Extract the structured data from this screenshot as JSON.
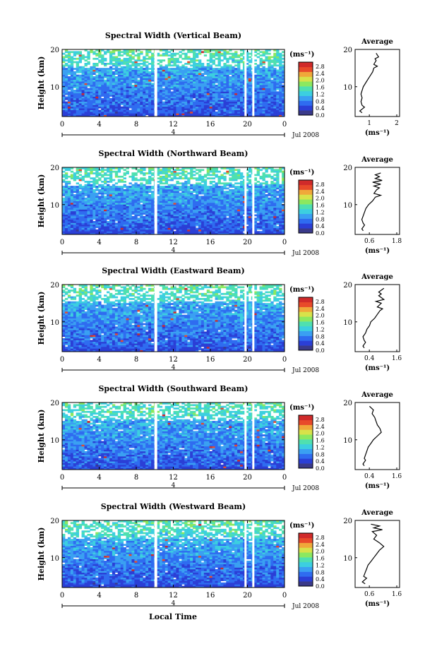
{
  "chart_data": [
    {
      "type": "heatmap",
      "title": "Spectral Width (Vertical Beam)",
      "ylabel": "Height (km)",
      "ylim": [
        2,
        20
      ],
      "yticks": [
        10,
        20
      ],
      "xticks": [
        "0",
        "4",
        "8",
        "12",
        "16",
        "20",
        "0"
      ],
      "date_marker": "4",
      "date_label": "Jul 2008",
      "colorbar": {
        "unit": "(ms⁻¹)",
        "ticks": [
          "2.8",
          "2.4",
          "2.0",
          "1.6",
          "1.2",
          "0.8",
          "0.4",
          "0.0"
        ]
      },
      "average": {
        "title": "Average",
        "xlabel": "(ms⁻¹)",
        "xticks": [
          "1",
          "2"
        ],
        "xlim": [
          0.3,
          2.2
        ],
        "yticks": [
          10,
          20
        ],
        "values": [
          [
            0.6,
            3
          ],
          [
            0.5,
            3.5
          ],
          [
            0.7,
            4.5
          ],
          [
            0.6,
            5
          ],
          [
            0.55,
            6
          ],
          [
            0.6,
            7
          ],
          [
            0.55,
            8
          ],
          [
            0.6,
            9
          ],
          [
            0.65,
            10
          ],
          [
            0.75,
            11
          ],
          [
            0.85,
            12
          ],
          [
            0.95,
            13
          ],
          [
            1.05,
            14
          ],
          [
            1.1,
            15
          ],
          [
            1.25,
            15.5
          ],
          [
            1.1,
            16
          ],
          [
            1.2,
            17
          ],
          [
            1.15,
            17.5
          ],
          [
            1.3,
            18
          ],
          [
            1.2,
            19
          ]
        ]
      }
    },
    {
      "type": "heatmap",
      "title": "Spectral Width (Northward Beam)",
      "ylabel": "Height (km)",
      "ylim": [
        2,
        20
      ],
      "yticks": [
        10,
        20
      ],
      "xticks": [
        "0",
        "4",
        "8",
        "12",
        "16",
        "20",
        "0"
      ],
      "date_marker": "4",
      "date_label": "Jul 2008",
      "colorbar": {
        "unit": "(ms⁻¹)",
        "ticks": [
          "2.8",
          "2.4",
          "2.0",
          "1.6",
          "1.2",
          "0.8",
          "0.4",
          "0.0"
        ]
      },
      "average": {
        "title": "Average",
        "xlabel": "(ms⁻¹)",
        "xticks": [
          "0.6",
          "1.8"
        ],
        "xlim": [
          0.35,
          2.0
        ],
        "yticks": [
          10,
          20
        ],
        "values": [
          [
            0.65,
            3
          ],
          [
            0.6,
            3.5
          ],
          [
            0.7,
            4.5
          ],
          [
            0.65,
            5
          ],
          [
            0.6,
            6
          ],
          [
            0.65,
            7
          ],
          [
            0.7,
            8
          ],
          [
            0.75,
            9
          ],
          [
            0.85,
            10
          ],
          [
            1.0,
            11
          ],
          [
            1.1,
            12
          ],
          [
            1.3,
            12.5
          ],
          [
            1.05,
            13
          ],
          [
            1.15,
            14
          ],
          [
            1.25,
            14.5
          ],
          [
            1.05,
            15
          ],
          [
            1.3,
            15.5
          ],
          [
            1.0,
            16
          ],
          [
            1.35,
            16.5
          ],
          [
            1.1,
            17
          ],
          [
            1.25,
            17.5
          ],
          [
            1.1,
            18
          ],
          [
            1.3,
            18.5
          ]
        ]
      }
    },
    {
      "type": "heatmap",
      "title": "Spectral Width (Eastward Beam)",
      "ylabel": "Height (km)",
      "ylim": [
        2,
        20
      ],
      "yticks": [
        10,
        20
      ],
      "xticks": [
        "0",
        "4",
        "8",
        "12",
        "16",
        "20",
        "0"
      ],
      "date_marker": "4",
      "date_label": "Jul 2008",
      "colorbar": {
        "unit": "(ms⁻¹)",
        "ticks": [
          "2.8",
          "2.4",
          "2.0",
          "1.6",
          "1.2",
          "0.8",
          "0.4",
          "0.0"
        ]
      },
      "average": {
        "title": "Average",
        "xlabel": "(ms⁻¹)",
        "xticks": [
          "0.4",
          "1.6"
        ],
        "xlim": [
          0.2,
          1.9
        ],
        "yticks": [
          10,
          20
        ],
        "values": [
          [
            0.55,
            3
          ],
          [
            0.5,
            3.5
          ],
          [
            0.6,
            4.5
          ],
          [
            0.55,
            5
          ],
          [
            0.5,
            6
          ],
          [
            0.6,
            7
          ],
          [
            0.65,
            8
          ],
          [
            0.75,
            9
          ],
          [
            0.8,
            10
          ],
          [
            0.95,
            11
          ],
          [
            1.05,
            12
          ],
          [
            1.15,
            13
          ],
          [
            1.25,
            13.5
          ],
          [
            1.05,
            14
          ],
          [
            1.2,
            15
          ],
          [
            1.0,
            15.5
          ],
          [
            1.3,
            16
          ],
          [
            1.1,
            17
          ],
          [
            1.2,
            17.5
          ],
          [
            1.1,
            18
          ],
          [
            1.3,
            19
          ]
        ]
      }
    },
    {
      "type": "heatmap",
      "title": "Spectral Width (Southward Beam)",
      "ylabel": "Height (km)",
      "ylim": [
        2,
        20
      ],
      "yticks": [
        10,
        20
      ],
      "xticks": [
        "0",
        "4",
        "8",
        "12",
        "16",
        "20",
        "0"
      ],
      "date_marker": "4",
      "date_label": "Jul 2008",
      "colorbar": {
        "unit": "(ms⁻¹)",
        "ticks": [
          "2.8",
          "2.4",
          "2.0",
          "1.6",
          "1.2",
          "0.8",
          "0.4",
          "0.0"
        ]
      },
      "average": {
        "title": "Average",
        "xlabel": "(ms⁻¹)",
        "xticks": [
          "0.4",
          "1.6"
        ],
        "xlim": [
          0.2,
          1.9
        ],
        "yticks": [
          10,
          20
        ],
        "values": [
          [
            0.55,
            3
          ],
          [
            0.5,
            3.5
          ],
          [
            0.6,
            4.5
          ],
          [
            0.55,
            5
          ],
          [
            0.6,
            6
          ],
          [
            0.65,
            7
          ],
          [
            0.7,
            8
          ],
          [
            0.8,
            9
          ],
          [
            0.9,
            10
          ],
          [
            1.05,
            11
          ],
          [
            1.2,
            12
          ],
          [
            1.15,
            13
          ],
          [
            1.05,
            14
          ],
          [
            1.0,
            15
          ],
          [
            0.95,
            16
          ],
          [
            0.85,
            17
          ],
          [
            0.9,
            18
          ],
          [
            0.75,
            19
          ]
        ]
      }
    },
    {
      "type": "heatmap",
      "title": "Spectral Width (Westward Beam)",
      "ylabel": "Height (km)",
      "ylim": [
        2,
        20
      ],
      "yticks": [
        10,
        20
      ],
      "xticks": [
        "0",
        "4",
        "8",
        "12",
        "16",
        "20",
        "0"
      ],
      "date_marker": "4",
      "date_label": "Jul 2008",
      "colorbar": {
        "unit": "(ms⁻¹)",
        "ticks": [
          "2.8",
          "2.4",
          "2.0",
          "1.6",
          "1.2",
          "0.8",
          "0.4",
          "0.0"
        ]
      },
      "average": {
        "title": "Average",
        "xlabel": "(ms⁻¹)",
        "xticks": [
          "0.6",
          "1.6"
        ],
        "xlim": [
          0.35,
          1.9
        ],
        "yticks": [
          10,
          20
        ],
        "values": [
          [
            0.7,
            3
          ],
          [
            0.6,
            3.5
          ],
          [
            0.75,
            4.5
          ],
          [
            0.65,
            5
          ],
          [
            0.7,
            6
          ],
          [
            0.75,
            7
          ],
          [
            0.8,
            8
          ],
          [
            0.9,
            9
          ],
          [
            1.0,
            10
          ],
          [
            1.1,
            11
          ],
          [
            1.2,
            12
          ],
          [
            1.35,
            13
          ],
          [
            1.2,
            14
          ],
          [
            1.0,
            15
          ],
          [
            1.1,
            16
          ],
          [
            0.95,
            17
          ],
          [
            1.3,
            17.5
          ],
          [
            1.0,
            18
          ],
          [
            1.2,
            18.5
          ],
          [
            0.9,
            19
          ]
        ]
      }
    }
  ],
  "xlabel": "Local Time",
  "colormap": [
    "#3a3a8a",
    "#2b3fd6",
    "#2f6cf0",
    "#3aa0f2",
    "#3ccfe0",
    "#4fe0b0",
    "#8ce860",
    "#d8e24a",
    "#f0a83a",
    "#e84a2a",
    "#d02a2a"
  ]
}
